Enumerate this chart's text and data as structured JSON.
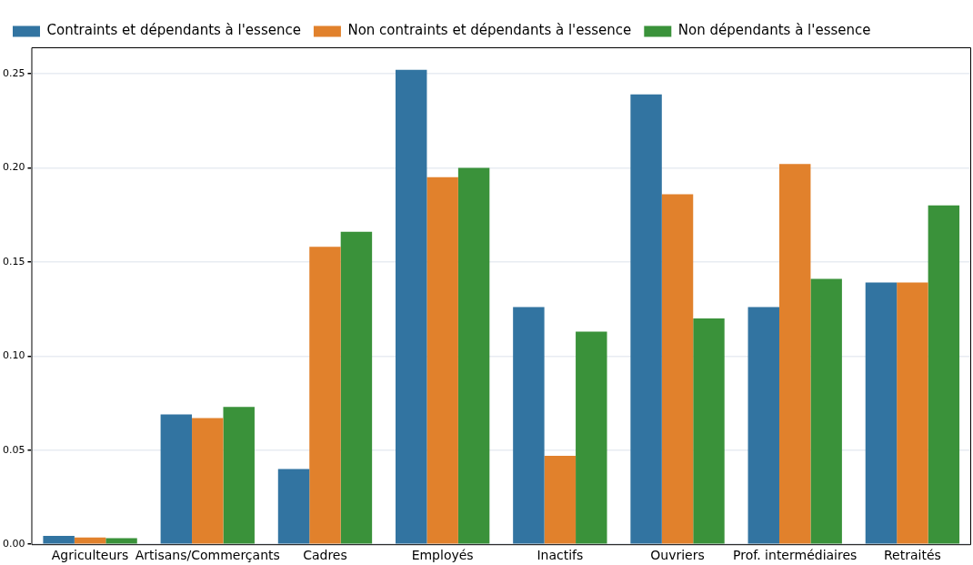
{
  "chart_data": {
    "type": "bar",
    "categories": [
      "Agriculteurs",
      "Artisans/Commerçants",
      "Cadres",
      "Employés",
      "Inactifs",
      "Ouvriers",
      "Prof. intermédiaires",
      "Retraités"
    ],
    "series": [
      {
        "name": "Contraints et dépendants à l'essence",
        "color": "#3274a1",
        "values": [
          0.0045,
          0.069,
          0.04,
          0.252,
          0.126,
          0.239,
          0.126,
          0.139
        ]
      },
      {
        "name": "Non contraints et dépendants à l'essence",
        "color": "#e1812c",
        "values": [
          0.0036,
          0.067,
          0.158,
          0.195,
          0.047,
          0.186,
          0.202,
          0.139
        ]
      },
      {
        "name": "Non dépendants à l'essence",
        "color": "#3a923a",
        "values": [
          0.0032,
          0.073,
          0.166,
          0.2,
          0.113,
          0.12,
          0.141,
          0.18
        ]
      }
    ],
    "ylim": [
      0,
      0.264
    ],
    "yticks": [
      {
        "value": 0,
        "label": "0.00"
      },
      {
        "value": 0.05,
        "label": "0.05"
      },
      {
        "value": 0.1,
        "label": "0.10"
      },
      {
        "value": 0.15,
        "label": "0.15"
      },
      {
        "value": 0.2,
        "label": "0.20"
      },
      {
        "value": 0.25,
        "label": "0.25"
      }
    ],
    "grid": "y",
    "legend": "top left"
  }
}
